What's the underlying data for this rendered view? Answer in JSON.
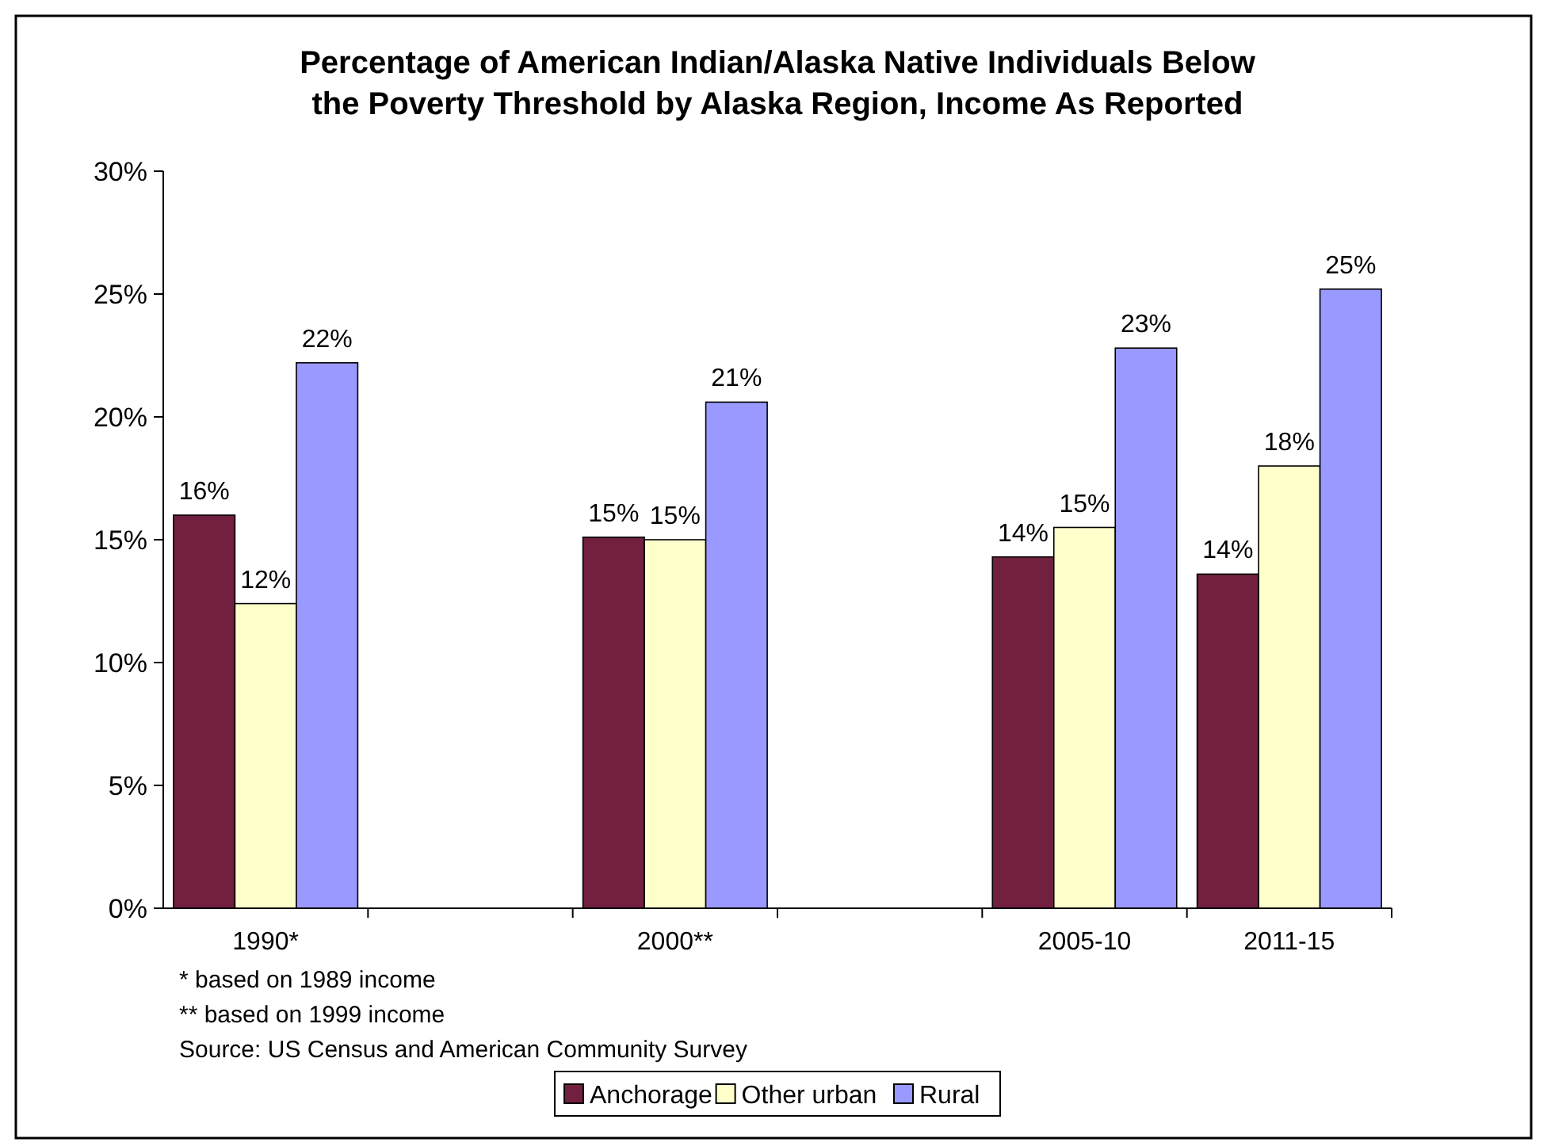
{
  "chart_data": {
    "type": "bar",
    "title": "Percentage of American Indian/Alaska Native Individuals Below the Poverty Threshold by Alaska Region, Income As Reported",
    "categories": [
      "1990*",
      null,
      "2000**",
      null,
      "2005-10",
      "2011-15"
    ],
    "series": [
      {
        "name": "Anchorage",
        "color": "#722040",
        "values": [
          16,
          null,
          15.1,
          null,
          14.3,
          13.6
        ],
        "value_labels": [
          "16%",
          null,
          "15%",
          null,
          "14%",
          "14%"
        ]
      },
      {
        "name": "Other urban",
        "color": "#ffffcc",
        "values": [
          12.4,
          null,
          15,
          null,
          15.5,
          18
        ],
        "value_labels": [
          "12%",
          null,
          "15%",
          null,
          "15%",
          "18%"
        ]
      },
      {
        "name": "Rural",
        "color": "#9999ff",
        "values": [
          22.2,
          null,
          20.6,
          null,
          22.8,
          25.2
        ],
        "value_labels": [
          "22%",
          null,
          "21%",
          null,
          "23%",
          "25%"
        ]
      }
    ],
    "ylim": [
      0,
      30
    ],
    "yticks": [
      {
        "value": 0,
        "label": "0%"
      },
      {
        "value": 5,
        "label": "5%"
      },
      {
        "value": 10,
        "label": "10%"
      },
      {
        "value": 15,
        "label": "15%"
      },
      {
        "value": 20,
        "label": "20%"
      },
      {
        "value": 25,
        "label": "25%"
      },
      {
        "value": 30,
        "label": "30%"
      }
    ],
    "grid": false,
    "legend": "bottom",
    "annotations": [
      "* based on 1989 income",
      "** based on 1999 income",
      "Source: US Census and American Community Survey"
    ]
  }
}
